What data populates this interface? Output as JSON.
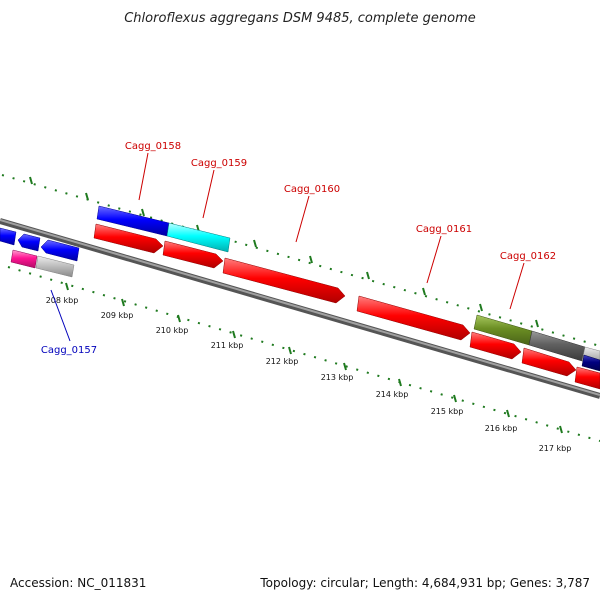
{
  "title": "Chloroflexus aggregans DSM 9485, complete genome",
  "footer": {
    "accession": "Accession: NC_011831",
    "summary": "Topology: circular; Length: 4,684,931 bp; Genes: 3,787"
  },
  "colors": {
    "backbone": "#7a7a7a",
    "ticks": "#1f7a1f",
    "label_forward": "#cc0000",
    "label_reverse": "#0000bb",
    "cds": "#ff0000",
    "reverse_cds": "#0000ff",
    "cyan": "#00ffff",
    "magenta": "#ff1493",
    "grey": "#c0c0c0",
    "olive": "#6b8e23",
    "dark_grey": "#606060",
    "navy": "#000080"
  },
  "gene_labels": [
    {
      "name": "Cagg_0157",
      "strand": "reverse"
    },
    {
      "name": "Cagg_0158",
      "strand": "forward"
    },
    {
      "name": "Cagg_0159",
      "strand": "forward"
    },
    {
      "name": "Cagg_0160",
      "strand": "forward"
    },
    {
      "name": "Cagg_0161",
      "strand": "forward"
    },
    {
      "name": "Cagg_0162",
      "strand": "forward"
    }
  ],
  "kbp_labels": [
    "208 kbp",
    "209 kbp",
    "210 kbp",
    "211 kbp",
    "212 kbp",
    "213 kbp",
    "214 kbp",
    "215 kbp",
    "216 kbp",
    "217 kbp"
  ]
}
